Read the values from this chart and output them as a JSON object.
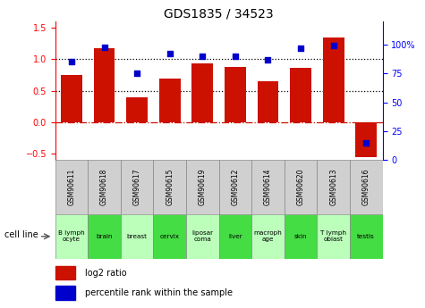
{
  "title": "GDS1835 / 34523",
  "samples": [
    "GSM90611",
    "GSM90618",
    "GSM90617",
    "GSM90615",
    "GSM90619",
    "GSM90612",
    "GSM90614",
    "GSM90620",
    "GSM90613",
    "GSM90616"
  ],
  "cell_lines": [
    "B lymph\nocyte",
    "brain",
    "breast",
    "cervix",
    "liposar\ncoma",
    "liver",
    "macroph\nage",
    "skin",
    "T lymph\noblast",
    "testis"
  ],
  "cell_line_colors": [
    "#bbffbb",
    "#44dd44",
    "#bbffbb",
    "#44dd44",
    "#bbffbb",
    "#44dd44",
    "#bbffbb",
    "#44dd44",
    "#bbffbb",
    "#44dd44"
  ],
  "log2_ratio": [
    0.75,
    1.18,
    0.4,
    0.7,
    0.93,
    0.88,
    0.65,
    0.87,
    1.35,
    -0.55
  ],
  "percentile_rank": [
    85,
    98,
    75,
    92,
    90,
    90,
    87,
    97,
    99,
    15
  ],
  "bar_color": "#cc1100",
  "dot_color": "#0000cc",
  "ylim_left": [
    -0.6,
    1.6
  ],
  "ylim_right": [
    0,
    120
  ],
  "yticks_left": [
    -0.5,
    0.0,
    0.5,
    1.0,
    1.5
  ],
  "yticks_right": [
    0,
    25,
    50,
    75,
    100
  ],
  "ytick_labels_right": [
    "0",
    "25",
    "50",
    "75",
    "100%"
  ],
  "hlines_dotted": [
    0.5,
    1.0
  ],
  "hline_dashed": 0.0,
  "legend_bar_label": "log2 ratio",
  "legend_dot_label": "percentile rank within the sample",
  "cell_line_label": "cell line",
  "sample_box_color": "#d0d0d0"
}
